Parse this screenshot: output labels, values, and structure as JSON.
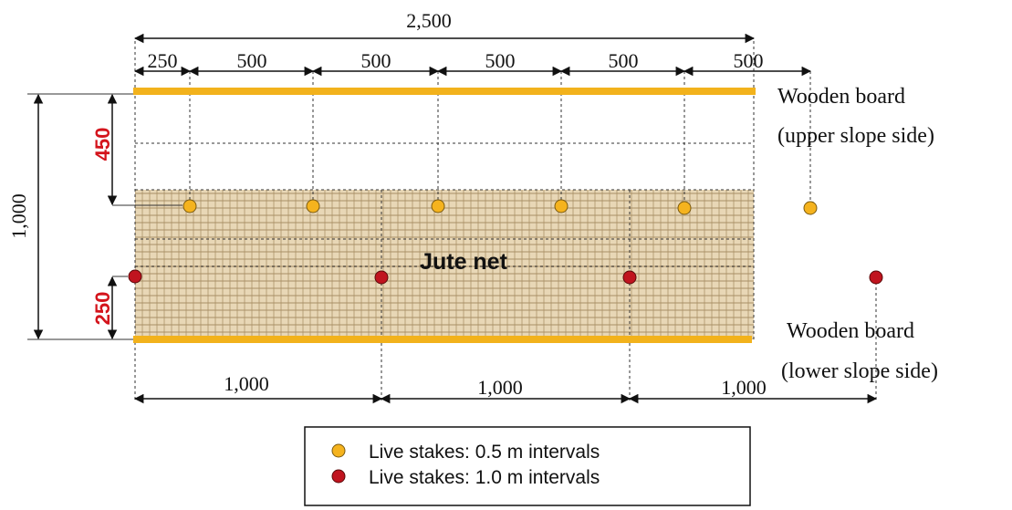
{
  "dimensions": {
    "top": {
      "total": "2,500",
      "segments": [
        "250",
        "500",
        "500",
        "500",
        "500",
        "500"
      ]
    },
    "left": {
      "total": "1,000",
      "upper": "450",
      "lower": "250"
    },
    "bottom": {
      "segments": [
        "1,000",
        "1,000",
        "1,000"
      ]
    }
  },
  "labels": {
    "upper_board": [
      "Wooden board",
      "(upper slope side)"
    ],
    "lower_board": [
      "Wooden board",
      "(lower slope side)"
    ],
    "jute_net": "Jute net"
  },
  "legend": {
    "items": [
      {
        "label": "Live stakes: 0.5 m intervals"
      },
      {
        "label": "Live stakes: 1.0 m intervals"
      }
    ]
  }
}
